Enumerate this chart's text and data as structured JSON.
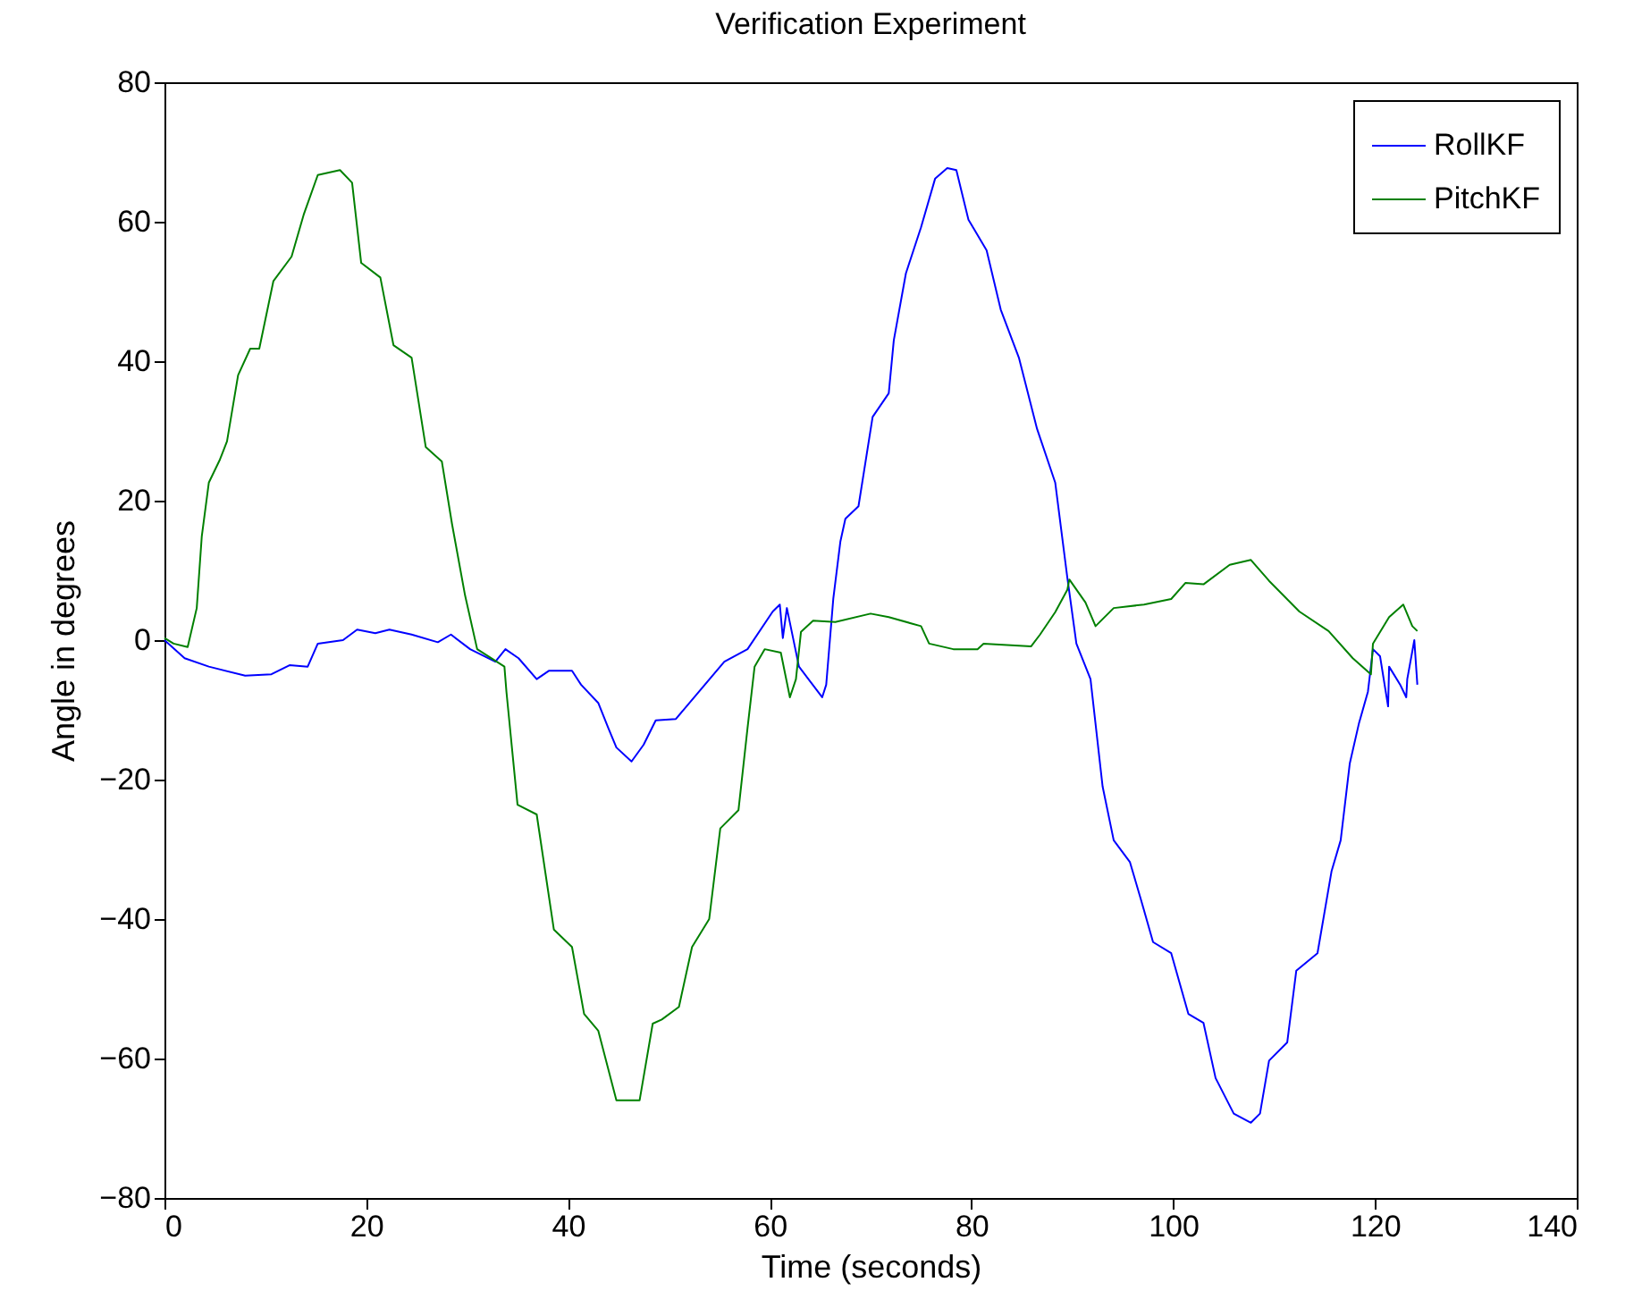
{
  "chart_data": {
    "type": "line",
    "title": "Verification Experiment",
    "xlabel": "Time (seconds)",
    "ylabel": "Angle in degrees",
    "xlim": [
      0,
      140
    ],
    "xticks": [
      0,
      20,
      40,
      60,
      80,
      100,
      120,
      140
    ],
    "ylim": [
      -80,
      80
    ],
    "yticks": [
      -80,
      -60,
      -40,
      -20,
      0,
      20,
      40,
      60,
      80
    ],
    "grid": false,
    "legend": "top right",
    "line_style": "solid",
    "marker": "none",
    "series": [
      {
        "name": "RollKF",
        "color": "#0000ff",
        "x": [
          0,
          2,
          4.4,
          8,
          10.6,
          12.4,
          14.2,
          15.2,
          17.7,
          19.1,
          20.9,
          22.3,
          24.5,
          27.1,
          28.4,
          30.3,
          32.8,
          33.8,
          35.1,
          36.9,
          38.1,
          40.4,
          41.3,
          43,
          44,
          44.8,
          46.3,
          47.5,
          48.7,
          50.7,
          52.8,
          55.5,
          57.8,
          60.3,
          61,
          61.3,
          61.7,
          62.9,
          65.2,
          65.6,
          66.3,
          67,
          67.5,
          68.8,
          70.2,
          71.8,
          72.3,
          73.5,
          75,
          76.4,
          77.6,
          78.5,
          79.7,
          81.5,
          82.9,
          84.7,
          86.5,
          88.3,
          89.5,
          90.4,
          91.8,
          93,
          94.1,
          95.7,
          96.8,
          98,
          99.8,
          101.5,
          103,
          104.2,
          106,
          107.7,
          108.6,
          109.5,
          111.3,
          112.2,
          114.3,
          115.7,
          116.6,
          117.5,
          118.4,
          119.3,
          119.8,
          120.5,
          121.3,
          121.4,
          122.5,
          123.1,
          123.2,
          123.9,
          124.2
        ],
        "values": [
          0,
          -2.6,
          -3.8,
          -5.1,
          -4.9,
          -3.6,
          -3.8,
          -0.5,
          0,
          1.5,
          1,
          1.5,
          0.8,
          -0.3,
          0.8,
          -1.3,
          -3.1,
          -1.3,
          -2.6,
          -5.6,
          -4.4,
          -4.4,
          -6.4,
          -9,
          -12.6,
          -15.4,
          -17.4,
          -15,
          -11.5,
          -11.3,
          -7.7,
          -3.1,
          -1.3,
          4.1,
          5.1,
          0.3,
          4.6,
          -3.8,
          -8.2,
          -6.4,
          5.9,
          14.1,
          17.4,
          19.2,
          32,
          35.4,
          43,
          52.6,
          59.2,
          66.2,
          67.7,
          67.4,
          60.3,
          55.9,
          47.4,
          40.5,
          30.3,
          22.6,
          9,
          -0.5,
          -5.6,
          -21,
          -28.7,
          -31.8,
          -37.2,
          -43.3,
          -44.9,
          -53.6,
          -54.9,
          -62.8,
          -67.9,
          -69.2,
          -67.9,
          -60.3,
          -57.7,
          -47.4,
          -44.9,
          -33.1,
          -28.7,
          -17.7,
          -12,
          -7.4,
          -1.3,
          -2.3,
          -9.5,
          -3.8,
          -6.4,
          -8.2,
          -5.6,
          0,
          -6.4
        ]
      },
      {
        "name": "PitchKF",
        "color": "#008000",
        "x": [
          0,
          0.9,
          2.3,
          3.2,
          3.7,
          4.4,
          5.5,
          6.2,
          7.3,
          8.5,
          9.4,
          10.8,
          12.6,
          13.8,
          15.2,
          17.4,
          18.6,
          19.5,
          21.4,
          22.7,
          24.5,
          25.9,
          27.5,
          28.5,
          29.8,
          31,
          33.7,
          33.9,
          35,
          36.9,
          38.6,
          40.4,
          41.6,
          43,
          44.8,
          47.1,
          48.4,
          49.3,
          51,
          52.3,
          54,
          55.1,
          56.9,
          57.8,
          58.5,
          59.5,
          61.1,
          62,
          62.6,
          63.1,
          64.3,
          66.5,
          70,
          71.8,
          75,
          75.8,
          78.2,
          80.6,
          81.2,
          85.9,
          86.8,
          88.3,
          89.5,
          89.7,
          91.3,
          92.3,
          94.1,
          97.1,
          99.8,
          101.2,
          103,
          105.6,
          107.7,
          109.5,
          112.5,
          115.4,
          117.8,
          119.6,
          119.8,
          121.4,
          122.8,
          123.7,
          124.2
        ],
        "values": [
          0.3,
          -0.5,
          -1,
          4.6,
          14.9,
          22.6,
          25.9,
          28.5,
          38,
          41.8,
          41.8,
          51.5,
          55,
          61,
          66.7,
          67.4,
          65.6,
          54.1,
          52,
          42.3,
          40.5,
          27.7,
          25.6,
          16.7,
          6.4,
          -1.3,
          -3.8,
          -7.4,
          -23.6,
          -25,
          -41.5,
          -44,
          -53.6,
          -56,
          -66,
          -66,
          -55,
          -54.4,
          -52.6,
          -44,
          -40,
          -27,
          -24.4,
          -12.6,
          -3.8,
          -1.3,
          -1.8,
          -8.2,
          -5.6,
          1.2,
          2.8,
          2.6,
          3.8,
          3.3,
          2,
          -0.5,
          -1.3,
          -1.3,
          -0.5,
          -0.9,
          0.8,
          4,
          7.2,
          8.7,
          5.4,
          2,
          4.6,
          5.1,
          5.9,
          8.2,
          8,
          10.8,
          11.5,
          8.5,
          4.1,
          1.3,
          -2.6,
          -4.9,
          -0.5,
          3.3,
          5.1,
          2,
          1.3
        ]
      }
    ]
  }
}
